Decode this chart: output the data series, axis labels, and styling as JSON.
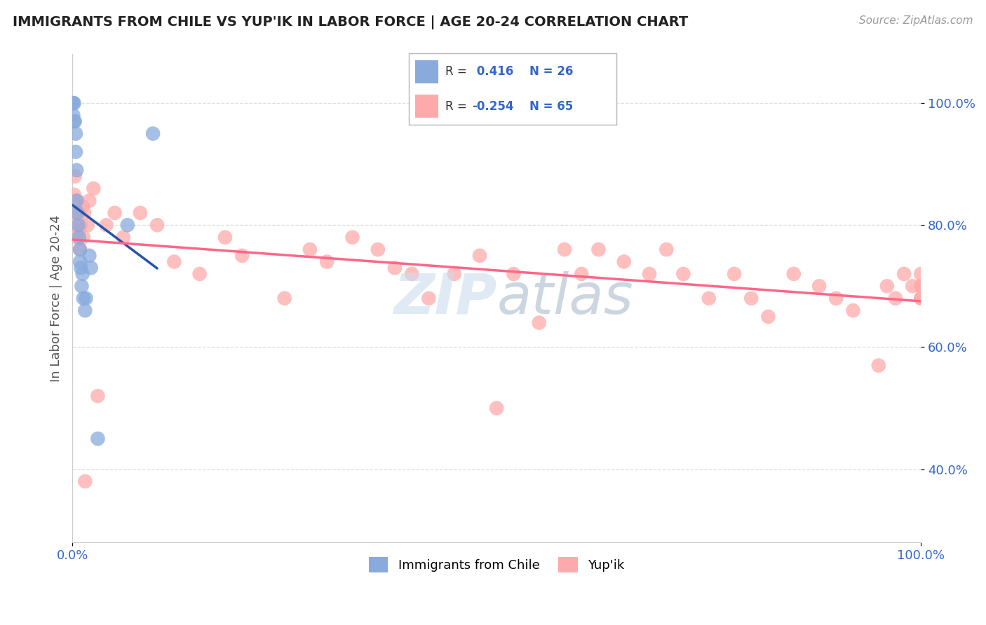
{
  "title": "IMMIGRANTS FROM CHILE VS YUP'IK IN LABOR FORCE | AGE 20-24 CORRELATION CHART",
  "source": "Source: ZipAtlas.com",
  "xlabel": "",
  "ylabel": "In Labor Force | Age 20-24",
  "legend_label1": "Immigrants from Chile",
  "legend_label2": "Yup'ik",
  "r1": 0.416,
  "n1": 26,
  "r2": -0.254,
  "n2": 65,
  "color_chile": "#88AADD",
  "color_yupik": "#FFAAAA",
  "color_line_chile": "#2255AA",
  "color_line_yupik": "#FF6688",
  "bg_color": "#ffffff",
  "chile_x": [
    0.0,
    0.001,
    0.001,
    0.002,
    0.002,
    0.003,
    0.004,
    0.004,
    0.005,
    0.005,
    0.006,
    0.007,
    0.008,
    0.009,
    0.009,
    0.01,
    0.011,
    0.012,
    0.013,
    0.015,
    0.016,
    0.02,
    0.022,
    0.03,
    0.065,
    0.095
  ],
  "chile_y": [
    1.0,
    1.0,
    0.98,
    1.0,
    0.97,
    0.97,
    0.95,
    0.92,
    0.89,
    0.84,
    0.82,
    0.8,
    0.78,
    0.76,
    0.74,
    0.73,
    0.7,
    0.72,
    0.68,
    0.66,
    0.68,
    0.75,
    0.73,
    0.45,
    0.8,
    0.95
  ],
  "yupik_x": [
    0.001,
    0.002,
    0.003,
    0.004,
    0.005,
    0.006,
    0.007,
    0.008,
    0.009,
    0.01,
    0.012,
    0.013,
    0.014,
    0.015,
    0.018,
    0.02,
    0.025,
    0.03,
    0.04,
    0.05,
    0.06,
    0.08,
    0.1,
    0.12,
    0.15,
    0.18,
    0.2,
    0.25,
    0.28,
    0.3,
    0.33,
    0.36,
    0.38,
    0.4,
    0.42,
    0.45,
    0.48,
    0.5,
    0.52,
    0.55,
    0.58,
    0.6,
    0.62,
    0.65,
    0.68,
    0.7,
    0.72,
    0.75,
    0.78,
    0.8,
    0.82,
    0.85,
    0.88,
    0.9,
    0.92,
    0.95,
    0.96,
    0.97,
    0.98,
    0.99,
    1.0,
    1.0,
    1.0,
    1.0,
    1.0
  ],
  "yupik_y": [
    0.82,
    0.85,
    0.88,
    0.8,
    0.78,
    0.84,
    0.79,
    0.82,
    0.76,
    0.8,
    0.83,
    0.78,
    0.82,
    0.38,
    0.8,
    0.84,
    0.86,
    0.52,
    0.8,
    0.82,
    0.78,
    0.82,
    0.8,
    0.74,
    0.72,
    0.78,
    0.75,
    0.68,
    0.76,
    0.74,
    0.78,
    0.76,
    0.73,
    0.72,
    0.68,
    0.72,
    0.75,
    0.5,
    0.72,
    0.64,
    0.76,
    0.72,
    0.76,
    0.74,
    0.72,
    0.76,
    0.72,
    0.68,
    0.72,
    0.68,
    0.65,
    0.72,
    0.7,
    0.68,
    0.66,
    0.57,
    0.7,
    0.68,
    0.72,
    0.7,
    0.7,
    0.68,
    0.72,
    0.68,
    0.7
  ],
  "xlim": [
    0.0,
    1.0
  ],
  "ylim": [
    0.28,
    1.08
  ],
  "yticks": [
    0.4,
    0.6,
    0.8,
    1.0
  ],
  "ytick_labels": [
    "40.0%",
    "60.0%",
    "80.0%",
    "100.0%"
  ],
  "xticks": [
    0.0,
    1.0
  ],
  "xtick_labels": [
    "0.0%",
    "100.0%"
  ],
  "grid_color": "#DDDDDD",
  "tick_color": "#3366CC"
}
